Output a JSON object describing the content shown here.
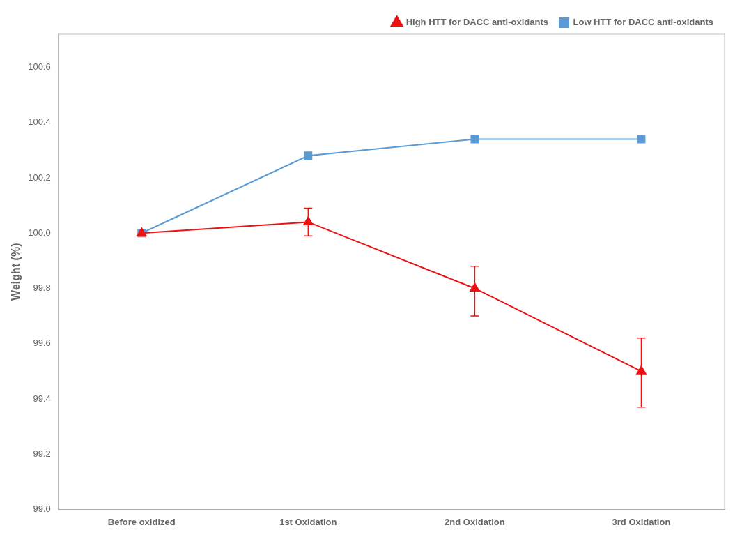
{
  "chart_data": {
    "type": "line",
    "ylabel": "Weight (%)",
    "categories": [
      "Before oxidized",
      "1st Oxidation",
      "2nd Oxidation",
      "3rd Oxidation"
    ],
    "series": [
      {
        "name": "High HTT for DACC anti-oxidants",
        "color": "#EE1111",
        "marker": "triangle",
        "line_style": "solid",
        "values": [
          100.0,
          100.04,
          99.8,
          99.5
        ],
        "yerr_lower": [
          0.0,
          0.05,
          0.1,
          0.13
        ],
        "yerr_upper": [
          0.0,
          0.05,
          0.08,
          0.12
        ]
      },
      {
        "name": "Low HTT for DACC anti-oxidants",
        "color": "#5B9BD5",
        "marker": "square",
        "line_style": "solid",
        "values": [
          100.0,
          100.28,
          100.34,
          100.34
        ],
        "yerr_lower": [
          0.0,
          0.0,
          0.0,
          0.0
        ],
        "yerr_upper": [
          0.0,
          0.0,
          0.0,
          0.0
        ]
      }
    ],
    "ylim": [
      99.0,
      100.72
    ],
    "yticks": [
      {
        "value": 99.0,
        "label": "99.0"
      },
      99.2,
      99.4,
      99.6,
      99.8,
      {
        "value": 100.0,
        "label": "100.0"
      },
      100.2,
      100.4,
      100.6
    ],
    "grid": false,
    "legend": "upper right"
  }
}
